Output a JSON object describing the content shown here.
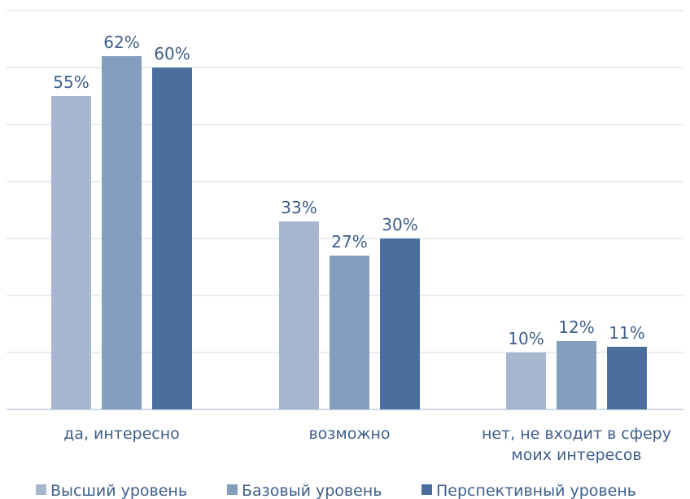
{
  "chart_data": {
    "type": "bar",
    "title": "",
    "xlabel": "",
    "ylabel": "",
    "categories": [
      [
        "да, интересно"
      ],
      [
        "возможно"
      ],
      [
        "нет, не входит в сферу",
        "моих интересов"
      ]
    ],
    "series": [
      {
        "name": "Высший уровень",
        "color": "#a7b7cf",
        "values": [
          55,
          33,
          10
        ],
        "labels": [
          "55%",
          "33%",
          "10%"
        ]
      },
      {
        "name": "Базовый уровень",
        "color": "#849ebd",
        "values": [
          62,
          27,
          12
        ],
        "labels": [
          "62%",
          "27%",
          "12%"
        ]
      },
      {
        "name": "Перспективный уровень",
        "color": "#4b6f9c",
        "values": [
          60,
          30,
          11
        ],
        "labels": [
          "60%",
          "30%",
          "11%"
        ]
      }
    ],
    "ylim": [
      0,
      70
    ],
    "grid": true,
    "legend_position": "bottom"
  }
}
